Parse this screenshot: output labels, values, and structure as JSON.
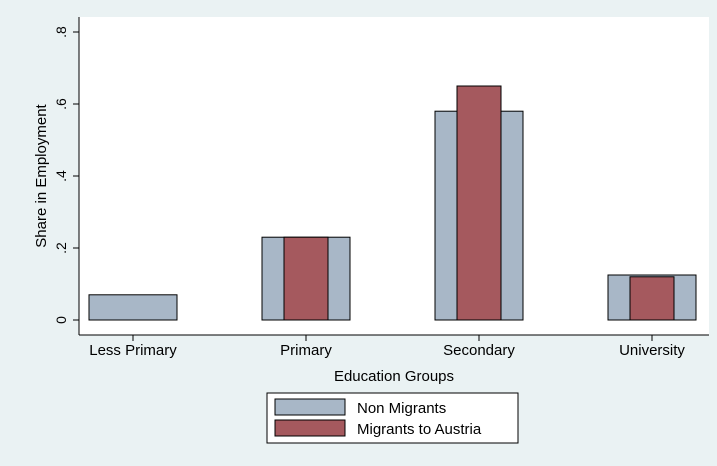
{
  "chart_data": {
    "type": "bar",
    "categories": [
      "Less Primary",
      "Primary",
      "Secondary",
      "University"
    ],
    "series": [
      {
        "name": "Non Migrants",
        "values": [
          0.07,
          0.23,
          0.58,
          0.125
        ],
        "color": "#a8b7c7"
      },
      {
        "name": "Migrants to Austria",
        "values": [
          null,
          0.23,
          0.65,
          0.12
        ],
        "color": "#a5595e"
      }
    ],
    "xlabel": "Education Groups",
    "ylabel": "Share in Employment",
    "ylim": [
      0,
      0.8
    ],
    "yticks": [
      0,
      0.2,
      0.4,
      0.6,
      0.8
    ],
    "ytick_labels": [
      "0",
      ".2",
      ".4",
      ".6",
      ".8"
    ],
    "grid": false,
    "legend_position": "bottom-center",
    "background_color": "#eaf2f3",
    "plot_background_color": "#ffffff"
  }
}
